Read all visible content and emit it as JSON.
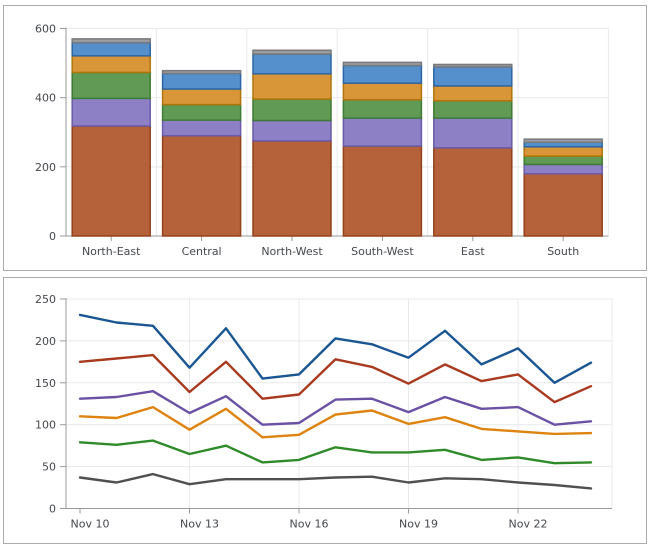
{
  "window": {
    "background": "#FFFFFF",
    "panel_border": "#ABABB0",
    "axis_line_color": "#9A9A9A",
    "gridline_color": "#E9E9EB",
    "label_color": "#45484D"
  },
  "chart_data": [
    {
      "type": "bar",
      "stacked": true,
      "title": "",
      "xlabel": "",
      "ylabel": "",
      "ylim": [
        0,
        600
      ],
      "yticks": [
        0,
        200,
        400,
        600
      ],
      "grid": true,
      "legend": "none",
      "categories": [
        "North-East",
        "Central",
        "North-West",
        "South-West",
        "East",
        "South"
      ],
      "series": [
        {
          "name": "rust",
          "fill": "#B5623A",
          "stroke": "#94421C",
          "values": [
            318,
            290,
            275,
            260,
            255,
            180
          ]
        },
        {
          "name": "purple",
          "fill": "#8D80C5",
          "stroke": "#695BA9",
          "values": [
            80,
            45,
            59,
            81,
            86,
            27
          ]
        },
        {
          "name": "green",
          "fill": "#619A54",
          "stroke": "#3E7C35",
          "values": [
            75,
            45,
            62,
            53,
            50,
            24
          ]
        },
        {
          "name": "orange",
          "fill": "#D89638",
          "stroke": "#B27408",
          "values": [
            48,
            45,
            73,
            48,
            43,
            27
          ]
        },
        {
          "name": "blue",
          "fill": "#5590CD",
          "stroke": "#2B65A6",
          "values": [
            38,
            45,
            57,
            51,
            55,
            13
          ]
        },
        {
          "name": "gray",
          "fill": "#9B9DA0",
          "stroke": "#77797C",
          "values": [
            11,
            8,
            11,
            9,
            7,
            9
          ]
        }
      ],
      "totals": [
        570,
        478,
        537,
        502,
        496,
        280
      ]
    },
    {
      "type": "line",
      "title": "",
      "xlabel": "",
      "ylabel": "",
      "ylim": [
        0,
        250
      ],
      "yticks": [
        0,
        50,
        100,
        150,
        200,
        250
      ],
      "grid": true,
      "legend": "none",
      "x_point_count": 15,
      "x_tick_indices": [
        0,
        3,
        6,
        9,
        12
      ],
      "x_tick_labels": [
        "Nov 10",
        "Nov 13",
        "Nov 16",
        "Nov 19",
        "Nov 22"
      ],
      "series": [
        {
          "name": "blue",
          "color": "#1A5692",
          "values": [
            231,
            222,
            218,
            168,
            215,
            155,
            160,
            203,
            196,
            180,
            212,
            172,
            191,
            150,
            174
          ]
        },
        {
          "name": "red",
          "color": "#A93A1F",
          "values": [
            175,
            179,
            183,
            139,
            175,
            131,
            136,
            178,
            169,
            149,
            172,
            152,
            160,
            127,
            146
          ]
        },
        {
          "name": "purple",
          "color": "#6A51A3",
          "values": [
            131,
            133,
            140,
            114,
            134,
            100,
            102,
            130,
            131,
            115,
            133,
            119,
            121,
            100,
            104
          ]
        },
        {
          "name": "orange",
          "color": "#DE830F",
          "values": [
            110,
            108,
            121,
            94,
            119,
            85,
            88,
            112,
            117,
            101,
            109,
            95,
            92,
            89,
            90
          ]
        },
        {
          "name": "green",
          "color": "#2F8B29",
          "values": [
            79,
            76,
            81,
            65,
            75,
            55,
            58,
            73,
            67,
            67,
            70,
            58,
            61,
            54,
            55
          ]
        },
        {
          "name": "gray",
          "color": "#4F5052",
          "values": [
            37,
            31,
            41,
            29,
            35,
            35,
            35,
            37,
            38,
            31,
            36,
            35,
            31,
            28,
            24
          ]
        }
      ]
    }
  ]
}
